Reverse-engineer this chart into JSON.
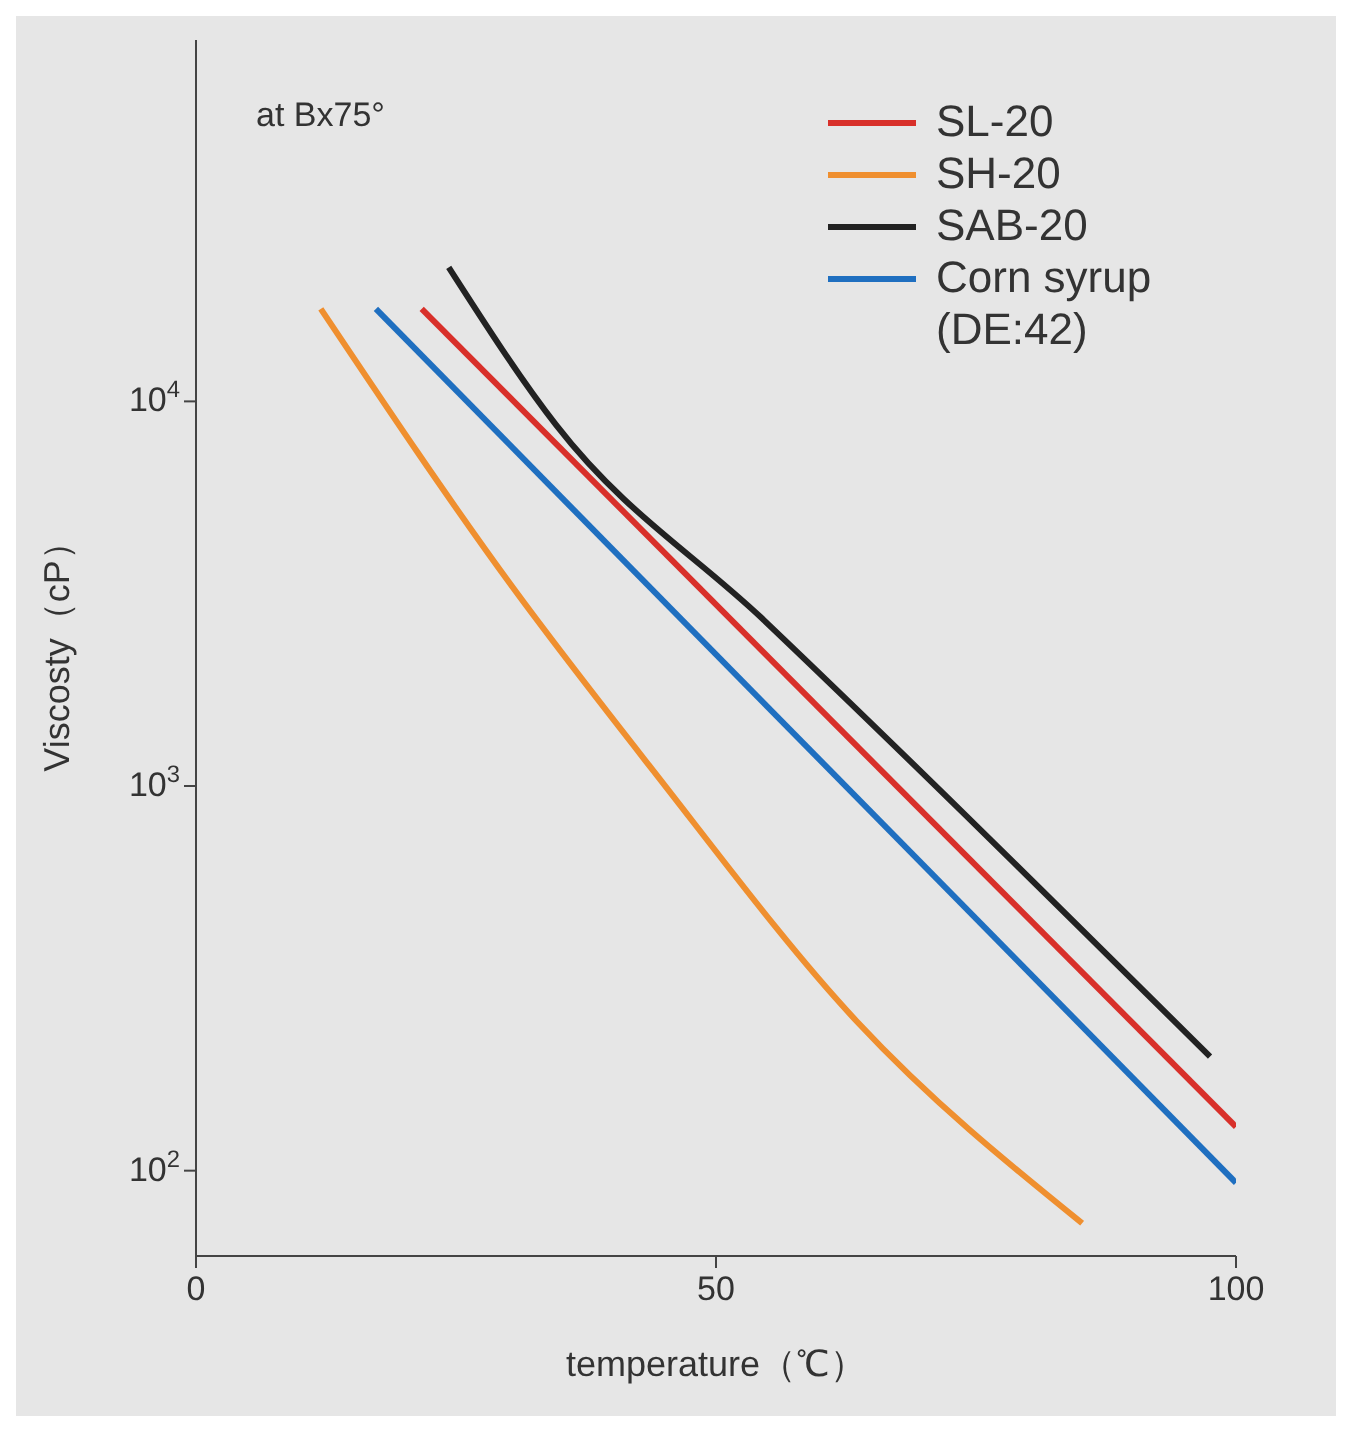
{
  "chart_data": {
    "type": "line",
    "xlabel": "temperature（℃）",
    "ylabel": "Viscosty（cP）",
    "annotations": [
      "at Bx75°"
    ],
    "xlim": [
      0,
      100
    ],
    "xticks": [
      0,
      50,
      100
    ],
    "ylim": [
      60,
      87000
    ],
    "log": "y",
    "yticks": [
      {
        "value": 100,
        "label": "10$^{2}$"
      },
      {
        "value": 1000,
        "label": "10$^{3}$"
      },
      {
        "value": 10000,
        "label": "10$^{4}$"
      }
    ],
    "legend": "top right",
    "marker": "none",
    "line_style": "solid",
    "series": [
      {
        "name": "SL-20",
        "color": "#d8302a",
        "x": [
          21.7,
          100
        ],
        "values": [
          17400,
          130
        ]
      },
      {
        "name": "SH-20",
        "color": "#ef8f2f",
        "x": [
          12,
          30.4,
          43.7,
          63.5,
          85.2
        ],
        "values": [
          17400,
          3300,
          1120,
          245,
          73
        ]
      },
      {
        "name": "SAB-20",
        "color": "#222222",
        "x": [
          24.3,
          34.6,
          54.6,
          97.5
        ],
        "values": [
          22300,
          8700,
          2700,
          198
        ]
      },
      {
        "name": "Corn syrup (DE:42)",
        "color": "#1f6fc0",
        "x": [
          17.3,
          100
        ],
        "values": [
          17400,
          93
        ]
      }
    ]
  }
}
